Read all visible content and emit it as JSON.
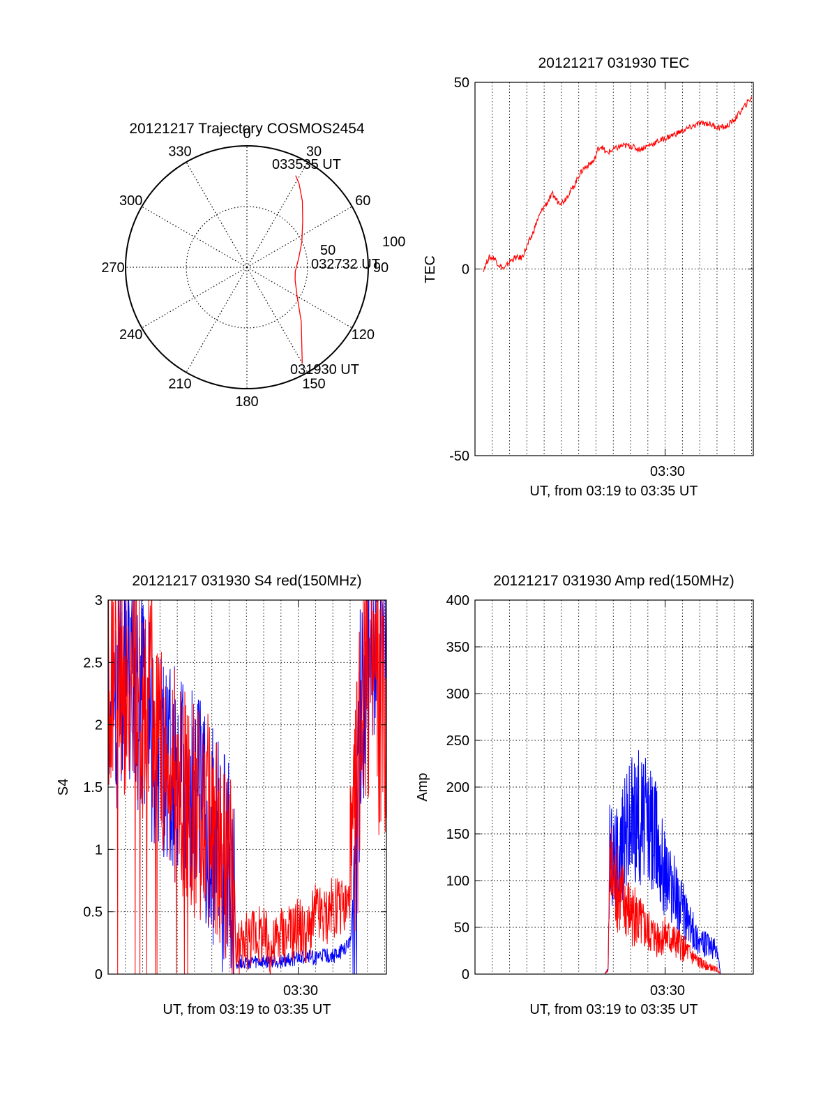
{
  "chart_data": [
    {
      "id": "polar",
      "type": "polar-trajectory",
      "title": "20121217 Trajectory COSMOS2454",
      "azimuth_labels": [
        "0",
        "30",
        "60",
        "90",
        "120",
        "150",
        "180",
        "210",
        "240",
        "270",
        "300",
        "330"
      ],
      "elevation_labels": [
        "50",
        "100"
      ],
      "start_label": "031930 UT",
      "mid_label": "032732 UT",
      "end_label": "033535 UT",
      "trajectory": {
        "color": "#ff0000",
        "points": [
          [
            150,
            8
          ],
          [
            135,
            33
          ],
          [
            120,
            47
          ],
          [
            105,
            53
          ],
          [
            95,
            54
          ],
          [
            80,
            51
          ],
          [
            65,
            45
          ],
          [
            50,
            36
          ],
          [
            40,
            26
          ],
          [
            32,
            17
          ],
          [
            28,
            13
          ]
        ]
      }
    },
    {
      "id": "tec",
      "type": "line",
      "title": "20121217 031930 TEC",
      "ylabel": "TEC",
      "xlabel": "UT, from 03:19 to 03:35 UT",
      "xtick_label": "03:30",
      "ylim": [
        -50,
        50
      ],
      "yticks": [
        "-50",
        "0",
        "50"
      ],
      "yticks_values": [
        -50,
        0,
        50
      ],
      "xlim": [
        0,
        16.1
      ],
      "xtick_at": 11.0,
      "grid_x_minutes": [
        1,
        2,
        3,
        4,
        5,
        6,
        7,
        8,
        9,
        10,
        11,
        12,
        13,
        14,
        15,
        16
      ],
      "grid_y_values": [
        0
      ],
      "series": [
        {
          "color": "#ff0000",
          "x": [
            0.5,
            0.8,
            1.1,
            1.4,
            1.7,
            2.0,
            2.3,
            2.7,
            3.0,
            3.3,
            3.6,
            3.9,
            4.2,
            4.5,
            4.8,
            5.1,
            5.4,
            5.7,
            6.0,
            6.3,
            6.6,
            6.9,
            7.1,
            7.3,
            7.6,
            8.0,
            8.5,
            9.0,
            9.5,
            10.0,
            10.5,
            11.0,
            11.5,
            12.0,
            12.5,
            13.0,
            13.5,
            14.0,
            14.5,
            15.0,
            15.5,
            16.0
          ],
          "y": [
            0,
            3,
            3,
            1,
            0,
            2,
            3,
            3,
            6,
            9,
            13,
            16,
            18,
            20,
            18,
            18,
            20,
            22,
            25,
            27,
            28,
            29,
            32,
            33,
            31,
            32,
            33,
            33,
            32,
            33,
            34,
            35,
            36,
            37,
            38,
            39,
            39,
            38,
            38,
            40,
            43,
            46
          ]
        }
      ]
    },
    {
      "id": "s4",
      "type": "line",
      "title": "20121217 031930 S4 red(150MHz)",
      "ylabel": "S4",
      "xlabel": "UT, from 03:19 to 03:35 UT",
      "xtick_label": "03:30",
      "ylim": [
        0,
        3
      ],
      "yticks": [
        "0",
        "0.5",
        "1",
        "1.5",
        "2",
        "2.5",
        "3"
      ],
      "yticks_values": [
        0,
        0.5,
        1,
        1.5,
        2,
        2.5,
        3
      ],
      "xlim": [
        0,
        16.1
      ],
      "xtick_at": 11.0,
      "grid_x_minutes": [
        1,
        2,
        3,
        4,
        5,
        6,
        7,
        8,
        9,
        10,
        11,
        12,
        13,
        14,
        15,
        16
      ],
      "grid_y_values": [
        0.5,
        1,
        1.5,
        2,
        2.5
      ],
      "series": [
        {
          "color": "#0000ff",
          "x": [
            0.0,
            0.5,
            1.0,
            1.5,
            2.0,
            2.5,
            3.0,
            3.5,
            4.0,
            4.5,
            5.0,
            5.5,
            6.0,
            6.3,
            6.6,
            7.0,
            7.3,
            7.4,
            7.6,
            8.0,
            8.5,
            9.0,
            9.5,
            10.0,
            10.5,
            11.0,
            11.5,
            12.0,
            12.5,
            13.0,
            13.5,
            14.0,
            14.3,
            14.6,
            14.9,
            15.2,
            15.5,
            15.8,
            16.1
          ],
          "y": [
            2.4,
            2.2,
            2.5,
            2.3,
            2.1,
            1.9,
            1.8,
            1.7,
            1.6,
            1.5,
            1.4,
            1.3,
            1.15,
            1.0,
            0.9,
            0.8,
            0.7,
            0.1,
            0.1,
            0.1,
            0.09,
            0.09,
            0.1,
            0.1,
            0.12,
            0.13,
            0.15,
            0.13,
            0.15,
            0.14,
            0.18,
            0.25,
            0.9,
            2.0,
            2.8,
            3.0,
            2.9,
            3.0,
            3.0
          ]
        },
        {
          "color": "#ff0000",
          "x": [
            0.0,
            0.5,
            1.0,
            1.5,
            2.0,
            2.5,
            3.0,
            3.5,
            4.0,
            4.5,
            5.0,
            5.5,
            6.0,
            6.3,
            6.6,
            7.0,
            7.3,
            7.4,
            7.6,
            8.0,
            8.5,
            9.0,
            9.5,
            10.0,
            10.5,
            11.0,
            11.5,
            12.0,
            12.5,
            13.0,
            13.5,
            14.0,
            14.3,
            14.6,
            14.9,
            15.2,
            15.5,
            15.8,
            16.1
          ],
          "y": [
            2.2,
            2.6,
            2.3,
            2.4,
            2.0,
            2.2,
            1.9,
            1.7,
            1.5,
            1.5,
            1.35,
            1.3,
            1.1,
            0.95,
            0.85,
            0.75,
            0.6,
            0.15,
            0.2,
            0.25,
            0.35,
            0.3,
            0.2,
            0.35,
            0.3,
            0.4,
            0.3,
            0.5,
            0.45,
            0.55,
            0.5,
            0.6,
            1.2,
            2.2,
            2.6,
            2.3,
            2.4,
            2.0,
            2.2
          ]
        }
      ]
    },
    {
      "id": "amp",
      "type": "line",
      "title": "20121217 031930 Amp red(150MHz)",
      "ylabel": "Amp",
      "xlabel": "UT, from 03:19 to 03:35 UT",
      "xtick_label": "03:30",
      "ylim": [
        0,
        400
      ],
      "yticks": [
        "0",
        "50",
        "100",
        "150",
        "200",
        "250",
        "300",
        "350",
        "400"
      ],
      "yticks_values": [
        0,
        50,
        100,
        150,
        200,
        250,
        300,
        350,
        400
      ],
      "xlim": [
        0,
        16.1
      ],
      "xtick_at": 11.0,
      "grid_x_minutes": [
        1,
        2,
        3,
        4,
        5,
        6,
        7,
        8,
        9,
        10,
        11,
        12,
        13,
        14,
        15,
        16
      ],
      "grid_y_values": [
        50,
        100,
        150,
        200,
        250,
        300,
        350
      ],
      "series": [
        {
          "color": "#0000ff",
          "x": [
            0.5,
            7.5,
            7.7,
            7.8,
            8.0,
            8.5,
            9.0,
            9.5,
            10.0,
            10.5,
            11.0,
            11.5,
            12.0,
            12.5,
            13.0,
            13.5,
            14.0,
            14.2,
            14.5,
            16.1
          ],
          "y": [
            0,
            0,
            5,
            130,
            120,
            140,
            165,
            170,
            160,
            145,
            110,
            90,
            70,
            50,
            35,
            30,
            25,
            0,
            0,
            0
          ]
        },
        {
          "color": "#ff0000",
          "x": [
            0.5,
            7.5,
            7.7,
            7.8,
            8.0,
            8.5,
            9.0,
            9.5,
            10.0,
            10.5,
            11.0,
            11.5,
            12.0,
            12.5,
            13.0,
            13.5,
            14.0,
            14.2,
            14.5,
            16.1
          ],
          "y": [
            0,
            0,
            5,
            110,
            95,
            80,
            65,
            55,
            45,
            40,
            40,
            35,
            30,
            20,
            12,
            8,
            5,
            0,
            0,
            0
          ]
        }
      ]
    }
  ]
}
